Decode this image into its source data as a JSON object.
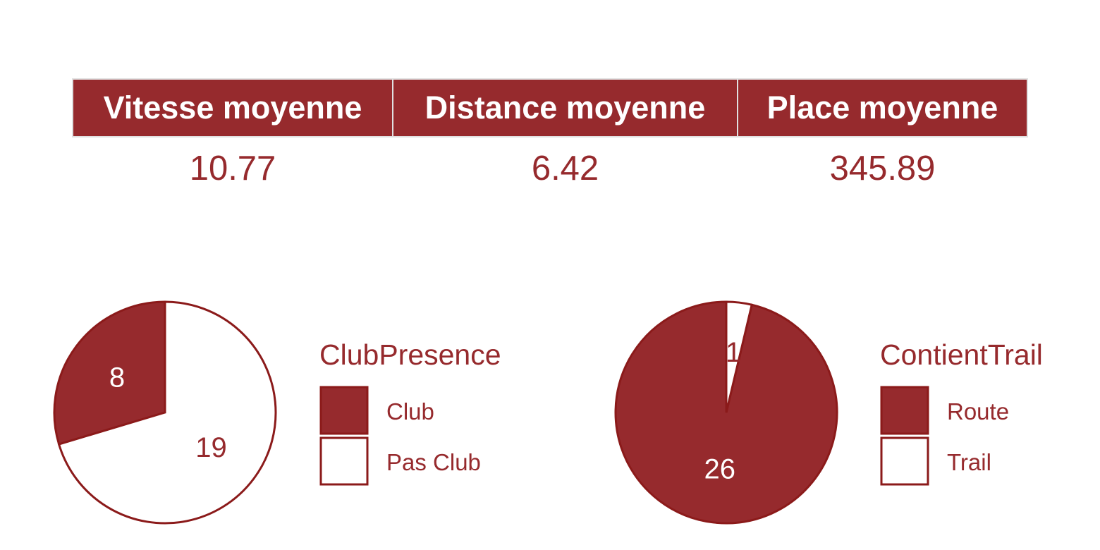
{
  "summary": {
    "headers": [
      "Vitesse moyenne",
      "Distance moyenne",
      "Place moyenne"
    ],
    "values": [
      "10.77",
      "6.42",
      "345.89"
    ]
  },
  "colors": {
    "accent": "#962a2d",
    "stroke": "#8b1a1a",
    "white": "#ffffff"
  },
  "chart_data": [
    {
      "type": "pie",
      "legend_title": "ClubPresence",
      "legend_position": "right",
      "slices": [
        {
          "label": "Club",
          "value": 8,
          "color": "#962a2d"
        },
        {
          "label": "Pas Club",
          "value": 19,
          "color": "#ffffff"
        }
      ]
    },
    {
      "type": "pie",
      "legend_title": "ContientTrail",
      "legend_position": "right",
      "slices": [
        {
          "label": "Route",
          "value": 26,
          "color": "#962a2d"
        },
        {
          "label": "Trail",
          "value": 1,
          "color": "#ffffff"
        }
      ]
    }
  ]
}
